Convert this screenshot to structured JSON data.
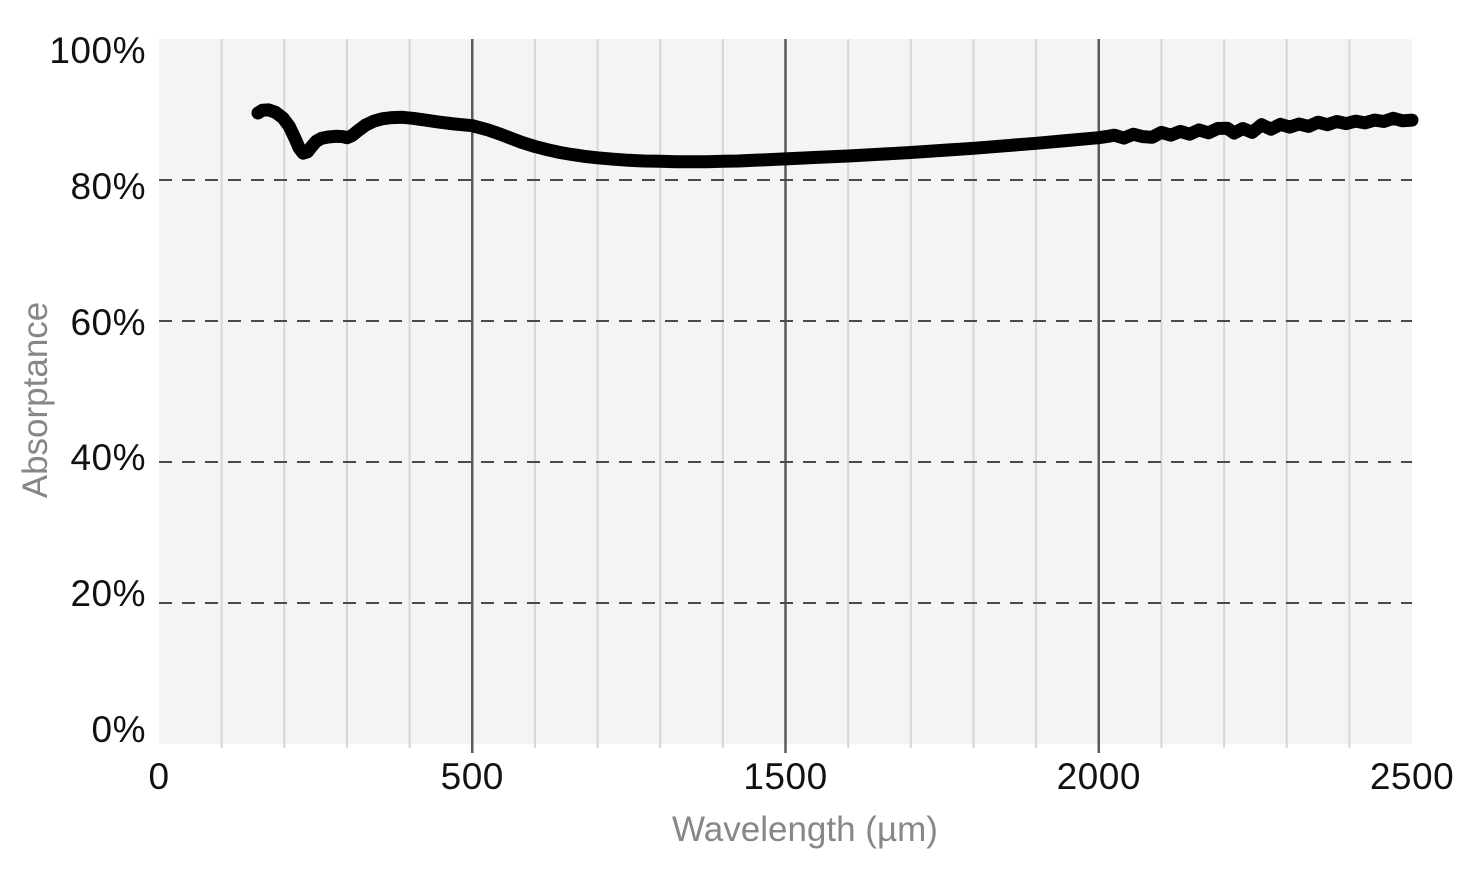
{
  "chart_data": {
    "type": "line",
    "title": "",
    "xlabel": "Wavelength (µm)",
    "ylabel": "Absorptance",
    "x_tick_labels": [
      "0",
      "500",
      "1500",
      "2000",
      "2500"
    ],
    "x_tick_values": [
      0,
      500,
      1500,
      2000,
      2500
    ],
    "minor_x_divisions_per_interval": 5,
    "x_axis_note": "labeled ticks are equally spaced on screen; wavelength scale is non-linear (0-500, 500-1500, 1500-2000, 2000-2500 each span one fifth of the axis)",
    "y_tick_labels": [
      "0%",
      "20%",
      "40%",
      "60%",
      "80%",
      "100%"
    ],
    "y_tick_values": [
      0,
      20,
      40,
      60,
      80,
      100
    ],
    "ylim": [
      0,
      100
    ],
    "grid": {
      "vertical_minor": "on",
      "vertical_major_at": [
        500,
        1500,
        2000
      ],
      "horizontal_dashed_at": [
        20,
        40,
        60,
        80
      ],
      "legend": "none"
    },
    "series": [
      {
        "name": "absorptance",
        "color": "#000000",
        "line_width": 13,
        "points": [
          [
            158,
            89.5
          ],
          [
            165,
            89.9
          ],
          [
            175,
            89.95
          ],
          [
            186,
            89.6
          ],
          [
            198,
            88.8
          ],
          [
            208,
            87.6
          ],
          [
            217,
            85.9
          ],
          [
            224,
            84.5
          ],
          [
            230,
            83.8
          ],
          [
            237,
            84.0
          ],
          [
            244,
            84.8
          ],
          [
            251,
            85.5
          ],
          [
            259,
            85.9
          ],
          [
            270,
            86.1
          ],
          [
            282,
            86.2
          ],
          [
            293,
            86.15
          ],
          [
            300,
            86.0
          ],
          [
            308,
            86.3
          ],
          [
            318,
            87.0
          ],
          [
            330,
            87.8
          ],
          [
            343,
            88.35
          ],
          [
            357,
            88.7
          ],
          [
            372,
            88.85
          ],
          [
            388,
            88.9
          ],
          [
            405,
            88.75
          ],
          [
            425,
            88.5
          ],
          [
            448,
            88.2
          ],
          [
            472,
            87.95
          ],
          [
            500,
            87.7
          ],
          [
            550,
            87.1
          ],
          [
            590,
            86.5
          ],
          [
            630,
            85.8
          ],
          [
            660,
            85.3
          ],
          [
            700,
            84.75
          ],
          [
            740,
            84.3
          ],
          [
            780,
            83.9
          ],
          [
            820,
            83.6
          ],
          [
            860,
            83.35
          ],
          [
            900,
            83.15
          ],
          [
            950,
            82.95
          ],
          [
            1000,
            82.8
          ],
          [
            1050,
            82.7
          ],
          [
            1100,
            82.65
          ],
          [
            1150,
            82.6
          ],
          [
            1200,
            82.6
          ],
          [
            1250,
            82.6
          ],
          [
            1300,
            82.65
          ],
          [
            1350,
            82.7
          ],
          [
            1400,
            82.8
          ],
          [
            1450,
            82.9
          ],
          [
            1500,
            83.0
          ],
          [
            1550,
            83.2
          ],
          [
            1600,
            83.4
          ],
          [
            1650,
            83.65
          ],
          [
            1700,
            83.9
          ],
          [
            1750,
            84.2
          ],
          [
            1800,
            84.5
          ],
          [
            1850,
            84.85
          ],
          [
            1900,
            85.2
          ],
          [
            1950,
            85.6
          ],
          [
            2000,
            86.0
          ],
          [
            2012,
            86.15
          ],
          [
            2025,
            86.35
          ],
          [
            2040,
            85.95
          ],
          [
            2055,
            86.5
          ],
          [
            2070,
            86.15
          ],
          [
            2085,
            86.05
          ],
          [
            2100,
            86.75
          ],
          [
            2115,
            86.35
          ],
          [
            2130,
            86.9
          ],
          [
            2145,
            86.5
          ],
          [
            2160,
            87.1
          ],
          [
            2175,
            86.7
          ],
          [
            2190,
            87.3
          ],
          [
            2205,
            87.35
          ],
          [
            2216,
            86.65
          ],
          [
            2230,
            87.3
          ],
          [
            2245,
            86.75
          ],
          [
            2260,
            87.85
          ],
          [
            2275,
            87.2
          ],
          [
            2290,
            87.9
          ],
          [
            2305,
            87.5
          ],
          [
            2320,
            87.95
          ],
          [
            2335,
            87.6
          ],
          [
            2350,
            88.2
          ],
          [
            2365,
            87.85
          ],
          [
            2380,
            88.3
          ],
          [
            2395,
            88.0
          ],
          [
            2410,
            88.35
          ],
          [
            2425,
            88.1
          ],
          [
            2440,
            88.5
          ],
          [
            2455,
            88.3
          ],
          [
            2470,
            88.75
          ],
          [
            2485,
            88.4
          ],
          [
            2500,
            88.5
          ]
        ]
      }
    ]
  },
  "colors": {
    "page_background": "#ffffff",
    "plot_background": "#f5f4f5",
    "minor_gridline": "#d6d6d6",
    "major_gridline": "#5b5b5b",
    "dashed_gridline": "#4a4a4a",
    "tick_label_text": "#111111",
    "axis_title_text": "#87878b",
    "curve": "#000000"
  }
}
